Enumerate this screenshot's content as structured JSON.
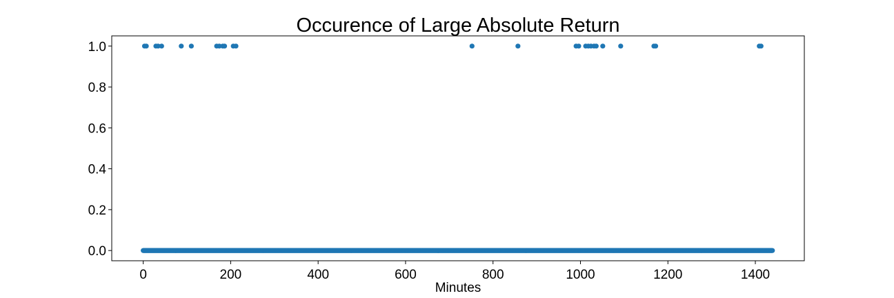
{
  "chart_data": {
    "type": "scatter",
    "title": "Occurence of Large Absolute Return",
    "xlabel": "Minutes",
    "ylabel": "",
    "xlim": [
      -72,
      1512
    ],
    "ylim": [
      -0.05,
      1.05
    ],
    "x_ticks": [
      0,
      200,
      400,
      600,
      800,
      1000,
      1200,
      1400
    ],
    "y_ticks": [
      0.0,
      0.2,
      0.4,
      0.6,
      0.8,
      1.0
    ],
    "x_tick_labels": [
      "0",
      "200",
      "400",
      "600",
      "800",
      "1000",
      "1200",
      "1400"
    ],
    "y_tick_labels": [
      "0.0",
      "0.2",
      "0.4",
      "0.6",
      "0.8",
      "1.0"
    ],
    "grid": false,
    "marker_color": "#1f77b4",
    "baseline": {
      "value": 0,
      "x_start": 0,
      "x_end": 1439,
      "step": 1
    },
    "ones_x": [
      3,
      7,
      29,
      34,
      42,
      87,
      110,
      168,
      174,
      182,
      186,
      206,
      212,
      752,
      857,
      990,
      996,
      1012,
      1018,
      1024,
      1031,
      1036,
      1051,
      1092,
      1168,
      1172,
      1409,
      1413
    ]
  }
}
